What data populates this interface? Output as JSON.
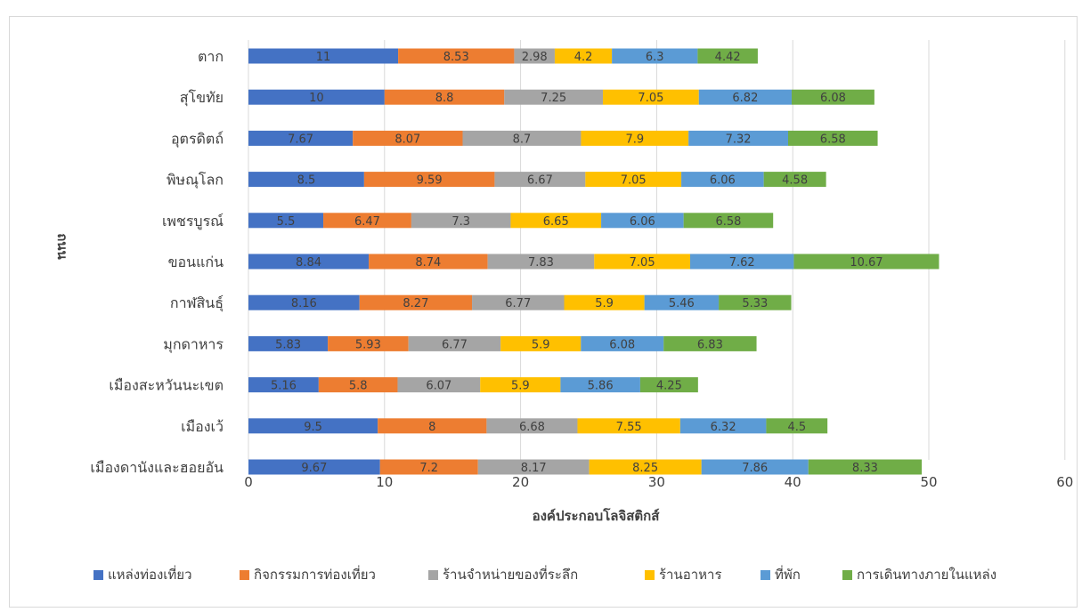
{
  "header_fragment": "...",
  "chart_data": {
    "type": "bar",
    "orientation": "horizontal",
    "stacked": true,
    "xlabel": "องค์ประกอบโลจิสติกส์",
    "ylabel": "ถนน",
    "xlim": [
      0,
      60
    ],
    "xticks": [
      0,
      10,
      20,
      30,
      40,
      50,
      60
    ],
    "grid": true,
    "legend_position": "bottom",
    "categories": [
      "ตาก",
      "สุโขทัย",
      "อุตรดิตถ์",
      "พิษณุโลก",
      "เพชรบูรณ์",
      "ขอนแก่น",
      "กาฬสินธุ์",
      "มุกดาหาร",
      "เมืองสะหวันนะเขต",
      "เมืองเว้",
      "เมืองดานังและฮอยอัน"
    ],
    "series": [
      {
        "name": "แหล่งท่องเที่ยว",
        "color": "#4472C4",
        "values": [
          11,
          10,
          7.67,
          8.5,
          5.5,
          8.84,
          8.16,
          5.83,
          5.16,
          9.5,
          9.67
        ]
      },
      {
        "name": "กิจกรรมการท่องเที่ยว",
        "color": "#ED7D31",
        "values": [
          8.53,
          8.8,
          8.07,
          9.59,
          6.47,
          8.74,
          8.27,
          5.93,
          5.8,
          8,
          7.2
        ]
      },
      {
        "name": "ร้านจำหน่ายของที่ระลึก",
        "color": "#A5A5A5",
        "values": [
          2.98,
          7.25,
          8.7,
          6.67,
          7.3,
          7.83,
          6.77,
          6.77,
          6.07,
          6.68,
          8.17
        ]
      },
      {
        "name": "ร้านอาหาร",
        "color": "#FFC000",
        "values": [
          4.2,
          7.05,
          7.9,
          7.05,
          6.65,
          7.05,
          5.9,
          5.9,
          5.9,
          7.55,
          8.25
        ]
      },
      {
        "name": "ที่พัก",
        "color": "#5B9BD5",
        "values": [
          6.3,
          6.82,
          7.32,
          6.06,
          6.06,
          7.62,
          5.46,
          6.08,
          5.86,
          6.32,
          7.86
        ]
      },
      {
        "name": "การเดินทางภายในแหล่ง",
        "color": "#70AD47",
        "values": [
          4.42,
          6.08,
          6.58,
          4.58,
          6.58,
          10.67,
          5.33,
          6.83,
          4.25,
          4.5,
          8.33
        ]
      }
    ]
  }
}
